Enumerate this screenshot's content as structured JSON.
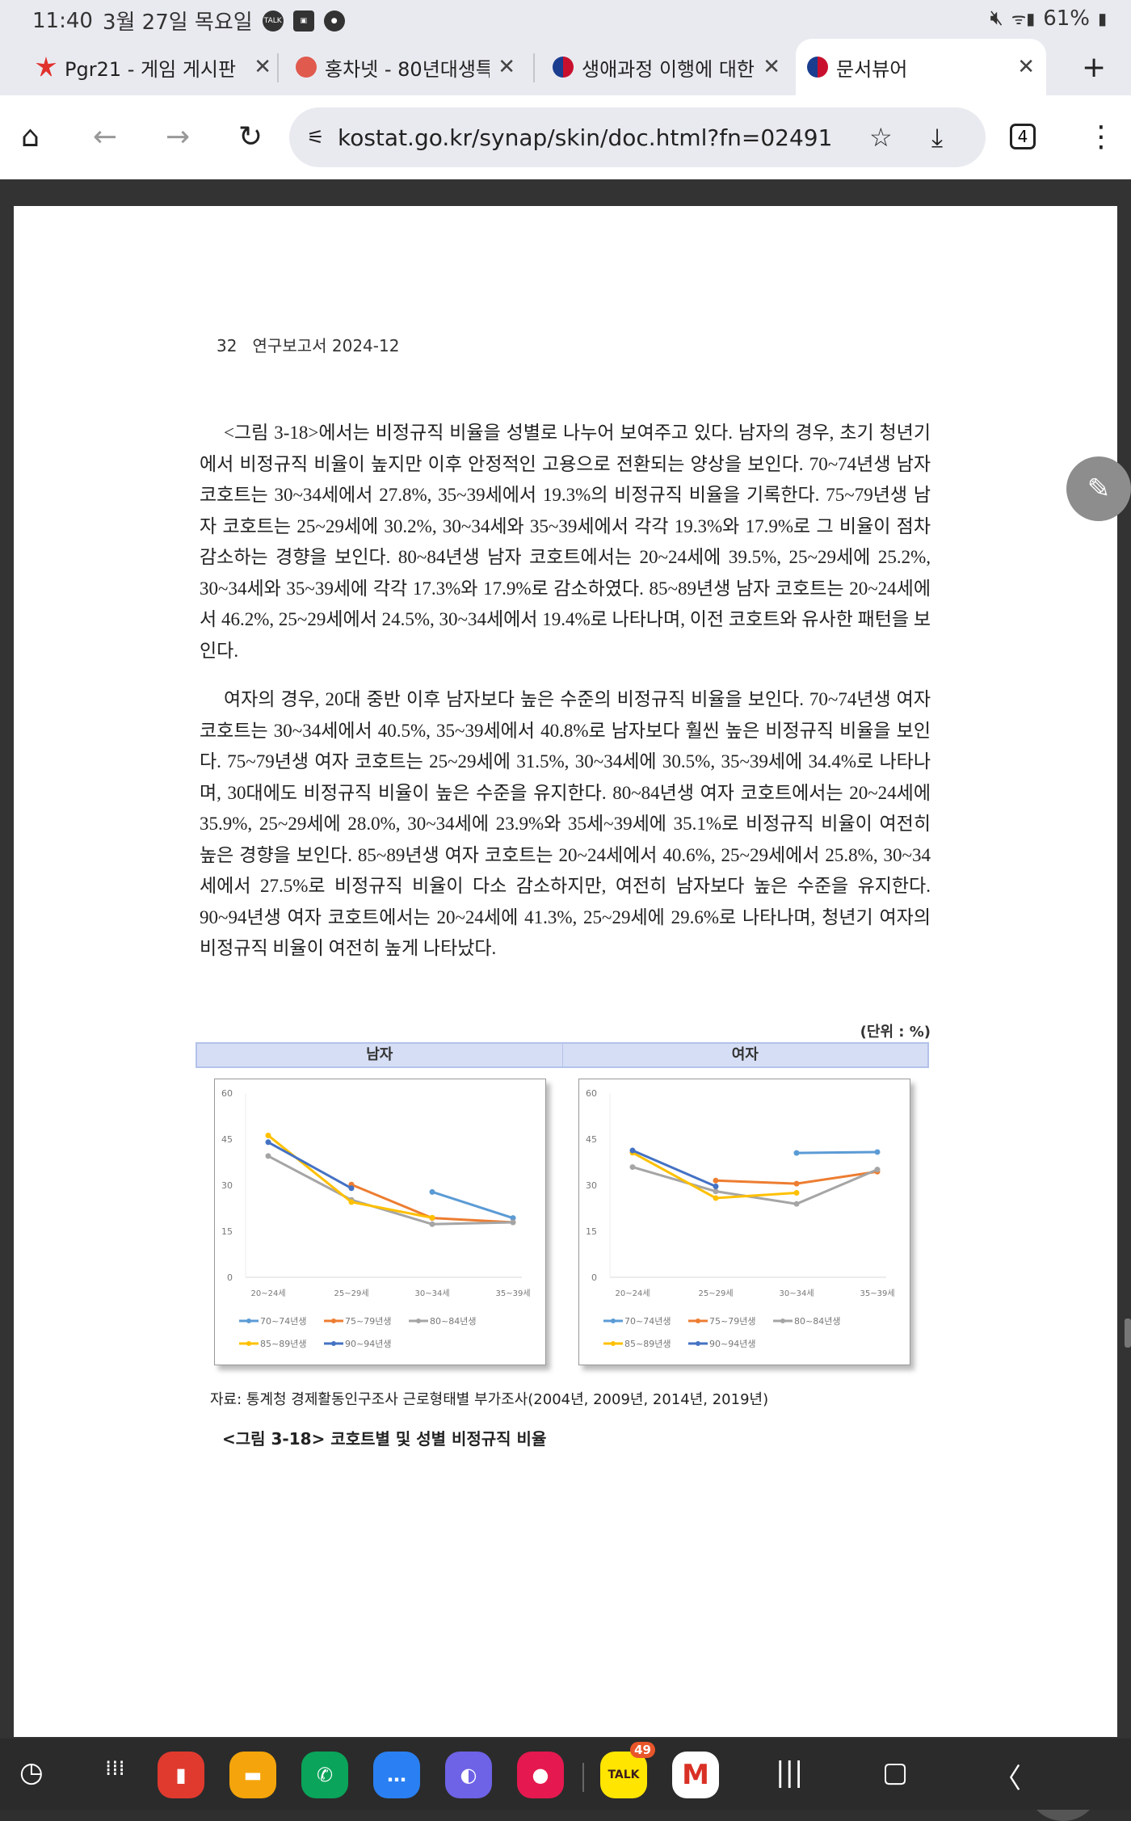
{
  "status_bar": {
    "time": "11:40",
    "date": "3월 27일 목요일",
    "battery": "61%"
  },
  "tabs": [
    {
      "title": "Pgr21 - 게임 게시판",
      "favicon_color": "#e0312d"
    },
    {
      "title": "홍차넷 - 80년대생특",
      "favicon_color": "#e05a4e"
    },
    {
      "title": "생애과정 이행에 대한",
      "favicon_color": "#1a3d8f"
    },
    {
      "title": "문서뷰어",
      "favicon_color": "#1a3d8f",
      "active": true
    }
  ],
  "toolbar": {
    "url": "kostat.go.kr/synap/skin/doc.html?fn=02491",
    "tab_count": "4"
  },
  "document": {
    "header": "32   연구보고서 2024-12",
    "paragraphs": [
      "<그림 3-18>에서는 비정규직 비율을 성별로 나누어 보여주고 있다. 남자의 경우, 초기 청년기에서 비정규직 비율이 높지만 이후 안정적인 고용으로 전환되는 양상을 보인다. 70~74년생 남자 코호트는 30~34세에서 27.8%, 35~39세에서 19.3%의 비정규직 비율을 기록한다. 75~79년생 남자 코호트는 25~29세에 30.2%, 30~34세와 35~39세에서 각각 19.3%와 17.9%로 그 비율이 점차 감소하는 경향을 보인다. 80~84년생 남자 코호트에서는 20~24세에 39.5%, 25~29세에 25.2%, 30~34세와 35~39세에 각각 17.3%와 17.9%로 감소하였다. 85~89년생 남자 코호트는 20~24세에서 46.2%, 25~29세에서 24.5%, 30~34세에서 19.4%로 나타나며, 이전 코호트와 유사한 패턴을 보인다.",
      "여자의 경우, 20대 중반 이후 남자보다 높은 수준의 비정규직 비율을 보인다. 70~74년생 여자 코호트는 30~34세에서 40.5%, 35~39세에서 40.8%로 남자보다 훨씬 높은 비정규직 비율을 보인다. 75~79년생 여자 코호트는 25~29세에 31.5%, 30~34세에 30.5%, 35~39세에 34.4%로 나타나며, 30대에도 비정규직 비율이 높은 수준을 유지한다. 80~84년생 여자 코호트에서는 20~24세에 35.9%, 25~29세에 28.0%, 30~34세에 23.9%와 35세~39세에 35.1%로 비정규직 비율이 여전히 높은 경향을 보인다. 85~89년생 여자 코호트는 20~24세에서 40.6%, 25~29세에서 25.8%, 30~34세에서 27.5%로 비정규직 비율이 다소 감소하지만, 여전히 남자보다 높은 수준을 유지한다. 90~94년생 여자 코호트에서는 20~24세에 41.3%, 25~29세에 29.6%로 나타나며, 청년기 여자의 비정규직 비율이 여전히 높게 나타났다."
    ],
    "unit": "(단위 : %)",
    "panel_headers": [
      "남자",
      "여자"
    ],
    "source": "자료: 통계청 경제활동인구조사 근로형태별 부가조사(2004년, 2009년, 2014년, 2019년)",
    "caption": "<그림 3-18> 코호트별 및 성별 비정규직 비율"
  },
  "chart_data": [
    {
      "type": "line",
      "title": "남자",
      "categories": [
        "20~24세",
        "25~29세",
        "30~34세",
        "35~39세"
      ],
      "ylim": [
        0,
        60
      ],
      "yticks": [
        0,
        15,
        30,
        45,
        60
      ],
      "grid": false,
      "legend": "bottom",
      "series": [
        {
          "name": "70~74년생",
          "color": "#5b9bd5",
          "values": [
            null,
            null,
            27.8,
            19.3
          ]
        },
        {
          "name": "75~79년생",
          "color": "#ed7d31",
          "values": [
            null,
            30.2,
            19.3,
            17.9
          ]
        },
        {
          "name": "80~84년생",
          "color": "#a5a5a5",
          "values": [
            39.5,
            25.2,
            17.3,
            17.9
          ]
        },
        {
          "name": "85~89년생",
          "color": "#ffc000",
          "values": [
            46.2,
            24.5,
            19.4,
            null
          ]
        },
        {
          "name": "90~94년생",
          "color": "#4472c4",
          "values": [
            44.0,
            29.0,
            null,
            null
          ]
        }
      ]
    },
    {
      "type": "line",
      "title": "여자",
      "categories": [
        "20~24세",
        "25~29세",
        "30~34세",
        "35~39세"
      ],
      "ylim": [
        0,
        60
      ],
      "yticks": [
        0,
        15,
        30,
        45,
        60
      ],
      "grid": false,
      "legend": "bottom",
      "series": [
        {
          "name": "70~74년생",
          "color": "#5b9bd5",
          "values": [
            null,
            null,
            40.5,
            40.8
          ]
        },
        {
          "name": "75~79년생",
          "color": "#ed7d31",
          "values": [
            null,
            31.5,
            30.5,
            34.4
          ]
        },
        {
          "name": "80~84년생",
          "color": "#a5a5a5",
          "values": [
            35.9,
            28.0,
            23.9,
            35.1
          ]
        },
        {
          "name": "85~89년생",
          "color": "#ffc000",
          "values": [
            40.6,
            25.8,
            27.5,
            null
          ]
        },
        {
          "name": "90~94년생",
          "color": "#4472c4",
          "values": [
            41.3,
            29.6,
            null,
            null
          ]
        }
      ]
    }
  ],
  "dock": {
    "kakaotalk_badge": "49"
  }
}
